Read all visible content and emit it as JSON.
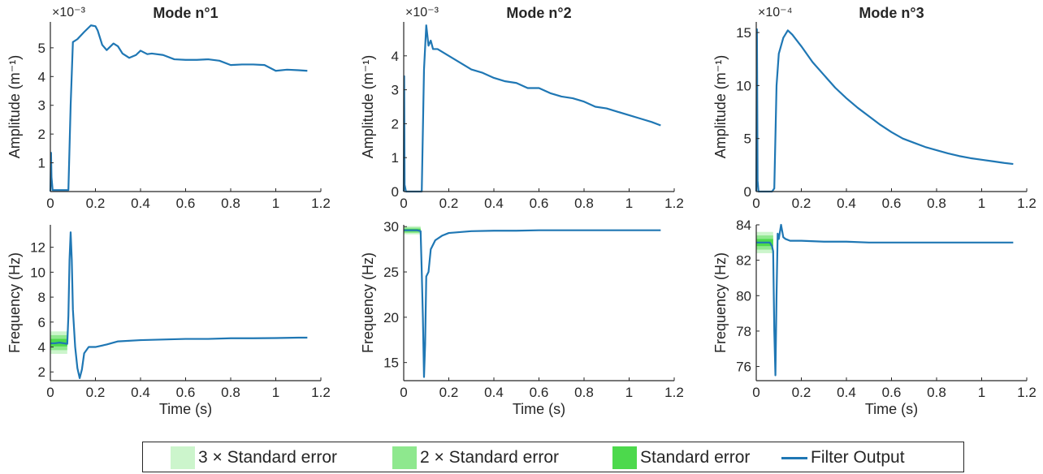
{
  "colors": {
    "line": "#1f77b4",
    "se3": "#ccf5cc",
    "se2": "#8ee88e",
    "se1": "#4cd94c",
    "axis": "#262626"
  },
  "legend": {
    "se3": "3 × Standard error",
    "se2": "2 × Standard error",
    "se1": "Standard error",
    "filter": "Filter Output"
  },
  "chart_data": [
    {
      "type": "line",
      "title": "Mode n°1",
      "xlabel": "",
      "ylabel": "Amplitude (m⁻¹)",
      "multiplier": "×10⁻³",
      "xlim": [
        0,
        1.2
      ],
      "ylim": [
        0,
        5.9
      ],
      "xticks": [
        "0",
        "0.2",
        "0.4",
        "0.6",
        "0.8",
        "1",
        "1.2"
      ],
      "yticks": [
        1,
        2,
        3,
        4,
        5
      ],
      "ytick_labels": [
        "1",
        "2",
        "3",
        "4",
        "5"
      ],
      "series": [
        {
          "x": [
            0,
            0.003,
            0.005,
            0.01,
            0.08,
            0.09,
            0.1,
            0.12,
            0.15,
            0.18,
            0.2,
            0.21,
            0.23,
            0.25,
            0.28,
            0.3,
            0.32,
            0.35,
            0.38,
            0.4,
            0.43,
            0.45,
            0.5,
            0.55,
            0.6,
            0.65,
            0.7,
            0.75,
            0.8,
            0.85,
            0.9,
            0.95,
            1.0,
            1.05,
            1.1,
            1.14
          ],
          "y": [
            0,
            1.35,
            0.5,
            0.05,
            0.05,
            3.0,
            5.2,
            5.3,
            5.55,
            5.78,
            5.75,
            5.6,
            5.1,
            4.92,
            5.15,
            5.05,
            4.8,
            4.65,
            4.75,
            4.9,
            4.78,
            4.8,
            4.75,
            4.6,
            4.58,
            4.58,
            4.6,
            4.55,
            4.4,
            4.42,
            4.42,
            4.4,
            4.2,
            4.24,
            4.22,
            4.2
          ]
        }
      ]
    },
    {
      "type": "line",
      "title": "Mode n°2",
      "xlabel": "",
      "ylabel": "Amplitude (m⁻¹)",
      "multiplier": "×10⁻³",
      "xlim": [
        0,
        1.2
      ],
      "ylim": [
        0,
        5.0
      ],
      "xticks": [
        "0",
        "0.2",
        "0.4",
        "0.6",
        "0.8",
        "1",
        "1.2"
      ],
      "yticks": [
        0,
        1,
        2,
        3,
        4
      ],
      "ytick_labels": [
        "0",
        "1",
        "2",
        "3",
        "4"
      ],
      "series": [
        {
          "x": [
            0,
            0.002,
            0.004,
            0.01,
            0.08,
            0.09,
            0.1,
            0.105,
            0.11,
            0.12,
            0.13,
            0.15,
            0.2,
            0.25,
            0.3,
            0.35,
            0.4,
            0.45,
            0.5,
            0.55,
            0.6,
            0.65,
            0.7,
            0.75,
            0.8,
            0.85,
            0.9,
            0.95,
            1.0,
            1.05,
            1.1,
            1.14
          ],
          "y": [
            0,
            3.4,
            0.2,
            0,
            0,
            3.6,
            4.9,
            4.6,
            4.3,
            4.45,
            4.2,
            4.2,
            4.0,
            3.8,
            3.6,
            3.5,
            3.35,
            3.25,
            3.2,
            3.05,
            3.05,
            2.9,
            2.8,
            2.75,
            2.65,
            2.5,
            2.45,
            2.35,
            2.25,
            2.15,
            2.05,
            1.95
          ]
        }
      ]
    },
    {
      "type": "line",
      "title": "Mode n°3",
      "xlabel": "",
      "ylabel": "Amplitude (m⁻¹)",
      "multiplier": "×10⁻⁴",
      "xlim": [
        0,
        1.2
      ],
      "ylim": [
        0,
        16.0
      ],
      "xticks": [
        "0",
        "0.2",
        "0.4",
        "0.6",
        "0.8",
        "1",
        "1.2"
      ],
      "yticks": [
        0,
        5,
        10,
        15
      ],
      "ytick_labels": [
        "0",
        "5",
        "10",
        "15"
      ],
      "series": [
        {
          "x": [
            0,
            0.003,
            0.006,
            0.01,
            0.07,
            0.08,
            0.09,
            0.1,
            0.12,
            0.14,
            0.16,
            0.2,
            0.25,
            0.3,
            0.35,
            0.4,
            0.45,
            0.5,
            0.55,
            0.6,
            0.65,
            0.7,
            0.75,
            0.8,
            0.85,
            0.9,
            0.95,
            1.0,
            1.05,
            1.1,
            1.14
          ],
          "y": [
            0,
            15.3,
            1,
            0,
            0,
            0.3,
            10,
            13,
            14.5,
            15.2,
            14.8,
            13.7,
            12.2,
            11.0,
            9.8,
            8.8,
            7.9,
            7.1,
            6.3,
            5.6,
            5.0,
            4.6,
            4.2,
            3.9,
            3.6,
            3.35,
            3.15,
            3.0,
            2.85,
            2.7,
            2.6
          ]
        }
      ]
    },
    {
      "type": "line",
      "title": "",
      "xlabel": "Time (s)",
      "ylabel": "Frequency (Hz)",
      "xlim": [
        0,
        1.2
      ],
      "ylim": [
        1.3,
        13.8
      ],
      "xticks": [
        "0",
        "0.2",
        "0.4",
        "0.6",
        "0.8",
        "1",
        "1.2"
      ],
      "yticks": [
        2,
        4,
        6,
        8,
        10,
        12
      ],
      "ytick_labels": [
        "2",
        "4",
        "6",
        "8",
        "10",
        "12"
      ],
      "band": {
        "x0": 0,
        "x1": 0.075,
        "center": 4.35,
        "se": 0.3
      },
      "series": [
        {
          "x": [
            0,
            0.02,
            0.04,
            0.06,
            0.075,
            0.08,
            0.085,
            0.09,
            0.095,
            0.1,
            0.11,
            0.12,
            0.13,
            0.14,
            0.15,
            0.17,
            0.2,
            0.25,
            0.3,
            0.4,
            0.5,
            0.6,
            0.7,
            0.8,
            0.9,
            1.0,
            1.1,
            1.14
          ],
          "y": [
            4.3,
            4.3,
            4.35,
            4.3,
            4.25,
            6.5,
            11,
            13.2,
            11,
            7,
            4,
            2.3,
            1.5,
            2.2,
            3.5,
            4.0,
            4.0,
            4.2,
            4.45,
            4.55,
            4.6,
            4.65,
            4.65,
            4.7,
            4.7,
            4.72,
            4.75,
            4.75
          ]
        }
      ]
    },
    {
      "type": "line",
      "title": "",
      "xlabel": "Time (s)",
      "ylabel": "Frequency (Hz)",
      "xlim": [
        0,
        1.2
      ],
      "ylim": [
        13.0,
        30.2
      ],
      "xticks": [
        "0",
        "0.2",
        "0.4",
        "0.6",
        "0.8",
        "1",
        "1.2"
      ],
      "yticks": [
        15,
        20,
        25,
        30
      ],
      "ytick_labels": [
        "15",
        "20",
        "25",
        "30"
      ],
      "band": {
        "x0": 0,
        "x1": 0.075,
        "center": 29.6,
        "se": 0.15
      },
      "series": [
        {
          "x": [
            0,
            0.02,
            0.04,
            0.06,
            0.075,
            0.08,
            0.085,
            0.09,
            0.095,
            0.1,
            0.11,
            0.12,
            0.14,
            0.17,
            0.2,
            0.3,
            0.4,
            0.5,
            0.6,
            0.7,
            0.8,
            0.9,
            1.0,
            1.1,
            1.14
          ],
          "y": [
            29.6,
            29.6,
            29.6,
            29.6,
            29.5,
            25,
            20,
            13.4,
            17,
            24.5,
            25.0,
            27.5,
            28.5,
            29.0,
            29.3,
            29.5,
            29.55,
            29.55,
            29.6,
            29.6,
            29.6,
            29.6,
            29.6,
            29.6,
            29.6
          ]
        }
      ]
    },
    {
      "type": "line",
      "title": "",
      "xlabel": "Time (s)",
      "ylabel": "Frequency (Hz)",
      "xlim": [
        0,
        1.2
      ],
      "ylim": [
        75.2,
        84.0
      ],
      "xticks": [
        "0",
        "0.2",
        "0.4",
        "0.6",
        "0.8",
        "1",
        "1.2"
      ],
      "yticks": [
        76,
        78,
        80,
        82,
        84
      ],
      "ytick_labels": [
        "76",
        "78",
        "80",
        "82",
        "84"
      ],
      "band": {
        "x0": 0,
        "x1": 0.075,
        "center": 83.0,
        "se": 0.2
      },
      "series": [
        {
          "x": [
            0,
            0.02,
            0.04,
            0.06,
            0.07,
            0.075,
            0.08,
            0.085,
            0.09,
            0.095,
            0.1,
            0.11,
            0.12,
            0.13,
            0.15,
            0.2,
            0.3,
            0.4,
            0.5,
            0.6,
            0.7,
            0.8,
            0.9,
            1.0,
            1.1,
            1.14
          ],
          "y": [
            83.0,
            83.0,
            83.0,
            83.0,
            82.8,
            82.5,
            78,
            75.5,
            80,
            83.5,
            83.2,
            84.0,
            83.3,
            83.2,
            83.1,
            83.1,
            83.05,
            83.05,
            83.0,
            83.0,
            83.0,
            83.0,
            83.0,
            83.0,
            83.0,
            83.0
          ]
        }
      ]
    }
  ]
}
